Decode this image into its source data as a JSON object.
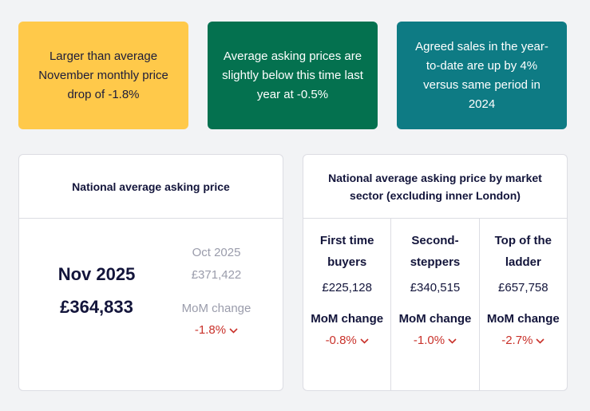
{
  "cards": [
    {
      "text": "Larger than average November monthly price drop of -1.8%"
    },
    {
      "text": "Average asking prices are slightly below this time last year at -0.5%"
    },
    {
      "text": "Agreed sales in the year-to-date are up by 4% versus same period in 2024"
    }
  ],
  "colors": {
    "yellow": "#ffc94a",
    "green": "#04714f",
    "teal": "#0e7b84",
    "negative": "#c9312a"
  },
  "national": {
    "title": "National average asking price",
    "current_label": "Nov 2025",
    "current_value": "£364,833",
    "prev_label": "Oct 2025",
    "prev_value": "£371,422",
    "mom_label": "MoM change",
    "mom_value": "-1.8%"
  },
  "sectors": {
    "title": "National average asking price by market sector (excluding inner London)",
    "columns": [
      {
        "name": "First time buyers",
        "price": "£225,128",
        "mom_label": "MoM change",
        "mom_value": "-0.8%"
      },
      {
        "name": "Second-steppers",
        "price": "£340,515",
        "mom_label": "MoM change",
        "mom_value": "-1.0%"
      },
      {
        "name": "Top of the ladder",
        "price": "£657,758",
        "mom_label": "MoM change",
        "mom_value": "-2.7%"
      }
    ]
  },
  "icons": {
    "down": "chevron-down-icon"
  }
}
